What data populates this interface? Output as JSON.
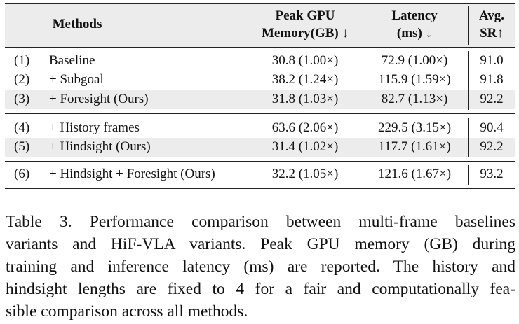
{
  "table": {
    "header": [
      [
        "Methods"
      ],
      [
        "Peak GPU",
        "Memory(GB) ↓"
      ],
      [
        "Latency",
        "(ms) ↓"
      ],
      [
        "Avg.",
        "SR↑"
      ]
    ],
    "rows": [
      [
        "(1)",
        "Baseline",
        "30.8 (1.00×)",
        "72.9 (1.00×)",
        "91.0"
      ],
      [
        "(2)",
        "+ Subgoal",
        "38.2 (1.24×)",
        "115.9 (1.59×)",
        "91.8"
      ],
      [
        "(3)",
        "+ Foresight (Ours)",
        "31.8 (1.03×)",
        "82.7 (1.13×)",
        "92.2"
      ],
      [
        "(4)",
        "+ History frames",
        "63.6 (2.06×)",
        "229.5 (3.15×)",
        "90.4"
      ],
      [
        "(5)",
        "+ Hindsight (Ours)",
        "31.4 (1.02×)",
        "117.7 (1.61×)",
        "92.2"
      ],
      [
        "(6)",
        "+ Hindsight + Foresight (Ours)",
        "32.2 (1.05×)",
        "121.6 (1.67×)",
        "93.2"
      ]
    ]
  },
  "caption": {
    "lines": [
      "Table 3. Performance comparison between multi-frame baselines",
      "variants and HiF-VLA variants. Peak GPU memory (GB) during",
      "training and inference latency (ms) are reported. The history and",
      "hindsight lengths are fixed to 4 for a fair and computationally fea-",
      "sible comparison across all methods."
    ]
  }
}
